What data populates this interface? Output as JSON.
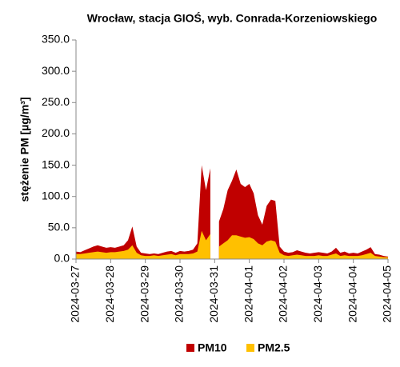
{
  "chart_data": {
    "type": "area",
    "title": "Wrocław, stacja GIOŚ, wyb. Conrada-Korzeniowskiego",
    "y_label": "stężenie PM [µg/m³]",
    "categories": [
      "2024-03-27",
      null,
      null,
      null,
      null,
      null,
      null,
      null,
      "2024-03-28",
      null,
      null,
      null,
      null,
      null,
      null,
      null,
      "2024-03-29",
      null,
      null,
      null,
      null,
      null,
      null,
      null,
      "2024-03-30",
      null,
      null,
      null,
      null,
      null,
      null,
      null,
      "2024-03-31",
      null,
      null,
      null,
      null,
      null,
      null,
      null,
      "2024-04-01",
      null,
      null,
      null,
      null,
      null,
      null,
      null,
      "2024-04-02",
      null,
      null,
      null,
      null,
      null,
      null,
      null,
      "2024-04-03",
      null,
      null,
      null,
      null,
      null,
      null,
      null,
      "2024-04-04",
      null,
      null,
      null,
      null,
      null,
      null,
      null,
      "2024-04-05"
    ],
    "series": [
      {
        "name": "PM10",
        "color": "#c00000",
        "values": [
          12,
          11,
          14,
          17,
          20,
          22,
          20,
          18,
          19,
          18,
          20,
          22,
          30,
          52,
          20,
          10,
          9,
          8,
          9,
          8,
          10,
          12,
          13,
          10,
          13,
          12,
          13,
          15,
          25,
          150,
          110,
          145,
          null,
          60,
          80,
          110,
          125,
          143,
          120,
          115,
          120,
          105,
          70,
          55,
          85,
          95,
          93,
          20,
          12,
          10,
          11,
          14,
          12,
          10,
          9,
          10,
          11,
          10,
          9,
          12,
          18,
          10,
          12,
          9,
          10,
          9,
          12,
          15,
          19,
          8,
          7,
          5,
          4
        ]
      },
      {
        "name": "PM2.5",
        "color": "#ffc000",
        "values": [
          8,
          8,
          9,
          10,
          11,
          12,
          11,
          10,
          11,
          11,
          12,
          13,
          15,
          22,
          10,
          6,
          5,
          5,
          6,
          5,
          6,
          7,
          8,
          6,
          8,
          8,
          8,
          9,
          12,
          45,
          30,
          40,
          null,
          20,
          25,
          30,
          38,
          38,
          36,
          34,
          35,
          32,
          25,
          22,
          28,
          30,
          28,
          10,
          6,
          5,
          6,
          7,
          6,
          5,
          5,
          5,
          6,
          5,
          5,
          7,
          9,
          5,
          6,
          5,
          5,
          5,
          6,
          8,
          10,
          5,
          4,
          3,
          3
        ]
      }
    ],
    "ylim": [
      0,
      350
    ],
    "yticks": [
      {
        "value": 0,
        "label": "0.0"
      },
      {
        "value": 50,
        "label": "50.0"
      },
      {
        "value": 100,
        "label": "100.0"
      },
      {
        "value": 150,
        "label": "150.0"
      },
      {
        "value": 200,
        "label": "200.0"
      },
      {
        "value": 250,
        "label": "250.0"
      },
      {
        "value": 300,
        "label": "300.0"
      },
      {
        "value": 350,
        "label": "350.0"
      }
    ],
    "legend": "bottom"
  }
}
